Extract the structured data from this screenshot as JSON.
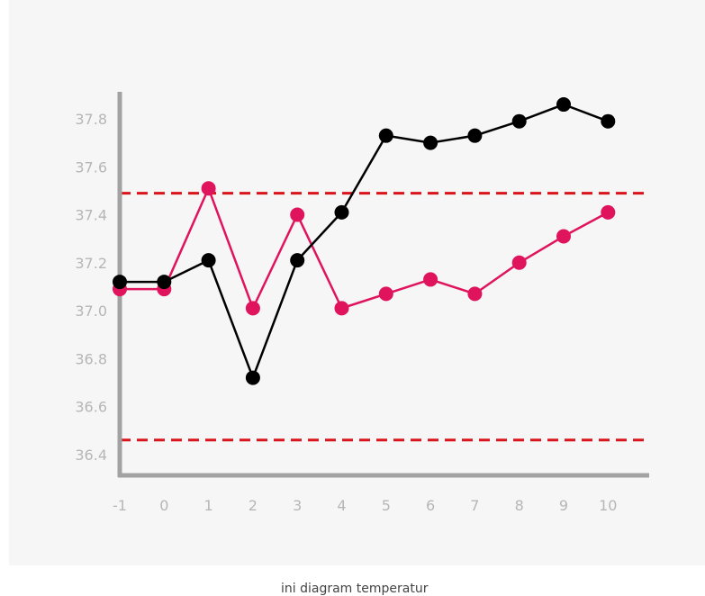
{
  "chart_data": {
    "type": "line",
    "x": [
      -1,
      0,
      1,
      2,
      3,
      4,
      5,
      6,
      7,
      8,
      9,
      10
    ],
    "x_tick_labels": [
      "-1",
      "0",
      "1",
      "2",
      "3",
      "4",
      "5",
      "6",
      "7",
      "8",
      "9",
      "10"
    ],
    "y_tick_labels": [
      "37.8",
      "37.6",
      "37.4",
      "37.2",
      "37.0",
      "36.8",
      "36.6",
      "36.4"
    ],
    "ylim": [
      36.3,
      37.9
    ],
    "series": [
      {
        "values": [
          37.12,
          37.12,
          37.21,
          36.72,
          37.21,
          37.41,
          37.73,
          37.7,
          37.73,
          37.79,
          37.86,
          37.79
        ],
        "color": "#000000"
      },
      {
        "values": [
          37.09,
          37.09,
          37.51,
          37.01,
          37.4,
          37.01,
          37.07,
          37.13,
          37.07,
          37.2,
          37.31,
          37.41
        ],
        "color": "#e0135d"
      }
    ],
    "reference_lines": [
      {
        "y": 37.49,
        "style": "dashed",
        "color": "#d9151b"
      },
      {
        "y": 36.46,
        "style": "dashed",
        "color": "#d9151b"
      }
    ],
    "grid": false,
    "legend": "none"
  },
  "caption": "ini diagram temperatur"
}
